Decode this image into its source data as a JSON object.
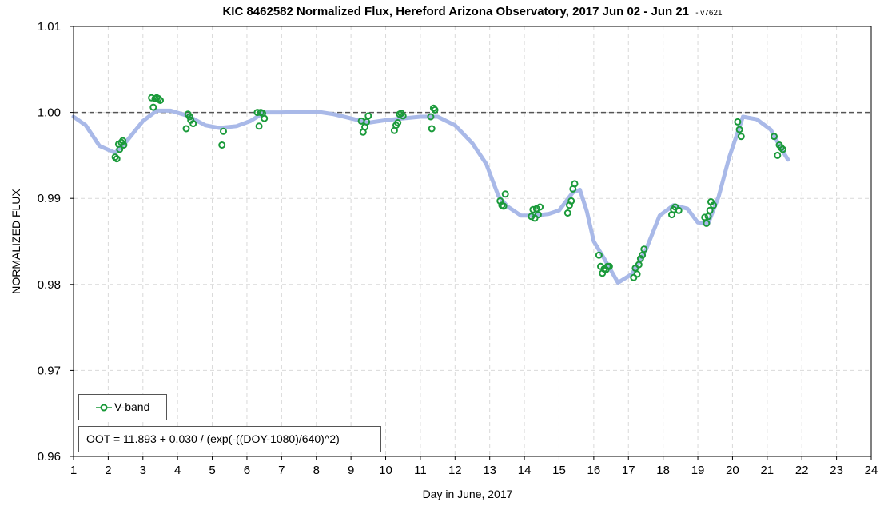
{
  "chart_data": {
    "type": "scatter",
    "title": "KIC 8462582 Normalized Flux, Hereford Arizona Observatory, 2017 Jun 02 - Jun 21",
    "title_tag": "- v7621",
    "xlabel": "Day in June, 2017",
    "ylabel": "NORMALIZED FLUX",
    "xlim": [
      1,
      24
    ],
    "ylim": [
      0.96,
      1.01
    ],
    "x_ticks": [
      "1",
      "2",
      "3",
      "4",
      "5",
      "6",
      "7",
      "8",
      "9",
      "10",
      "11",
      "12",
      "13",
      "14",
      "15",
      "16",
      "17",
      "18",
      "19",
      "20",
      "21",
      "22",
      "23",
      "24"
    ],
    "y_ticks": [
      "0.96",
      "0.97",
      "0.98",
      "0.99",
      "1.00",
      "1.01"
    ],
    "grid": true,
    "reference_line": 1.0,
    "legend_location": "lower-left",
    "colors": {
      "points": "#1a9a3a",
      "trend": "#a9b9e8",
      "reference": "#555555"
    },
    "series": [
      {
        "name": "V-band",
        "points": [
          [
            2.2,
            0.9948
          ],
          [
            2.25,
            0.9946
          ],
          [
            2.3,
            0.9963
          ],
          [
            2.33,
            0.9957
          ],
          [
            2.38,
            0.9965
          ],
          [
            2.42,
            0.9967
          ],
          [
            2.45,
            0.9962
          ],
          [
            3.25,
            1.0017
          ],
          [
            3.3,
            1.0006
          ],
          [
            3.35,
            1.0016
          ],
          [
            3.4,
            1.0017
          ],
          [
            3.45,
            1.0016
          ],
          [
            3.5,
            1.0014
          ],
          [
            4.25,
            0.9981
          ],
          [
            4.3,
            0.9998
          ],
          [
            4.35,
            0.9995
          ],
          [
            4.38,
            0.9991
          ],
          [
            4.45,
            0.9987
          ],
          [
            5.28,
            0.9962
          ],
          [
            5.32,
            0.9978
          ],
          [
            6.3,
            1.0
          ],
          [
            6.35,
            0.9984
          ],
          [
            6.4,
            1.0
          ],
          [
            6.45,
            0.9999
          ],
          [
            6.5,
            0.9993
          ],
          [
            9.3,
            0.999
          ],
          [
            9.35,
            0.9977
          ],
          [
            9.4,
            0.9983
          ],
          [
            9.45,
            0.9989
          ],
          [
            9.5,
            0.9996
          ],
          [
            10.25,
            0.9979
          ],
          [
            10.3,
            0.9985
          ],
          [
            10.35,
            0.9988
          ],
          [
            10.4,
            0.9998
          ],
          [
            10.45,
            0.9999
          ],
          [
            10.5,
            0.9996
          ],
          [
            11.3,
            0.9995
          ],
          [
            11.33,
            0.9981
          ],
          [
            11.38,
            1.0005
          ],
          [
            11.42,
            1.0003
          ],
          [
            13.3,
            0.9897
          ],
          [
            13.35,
            0.9892
          ],
          [
            13.4,
            0.9891
          ],
          [
            13.45,
            0.9905
          ],
          [
            14.2,
            0.9879
          ],
          [
            14.25,
            0.9887
          ],
          [
            14.3,
            0.9877
          ],
          [
            14.35,
            0.9888
          ],
          [
            14.4,
            0.9881
          ],
          [
            14.45,
            0.989
          ],
          [
            15.25,
            0.9883
          ],
          [
            15.3,
            0.9892
          ],
          [
            15.35,
            0.9897
          ],
          [
            15.4,
            0.9911
          ],
          [
            15.45,
            0.9917
          ],
          [
            16.15,
            0.9834
          ],
          [
            16.2,
            0.9821
          ],
          [
            16.25,
            0.9813
          ],
          [
            16.3,
            0.9818
          ],
          [
            16.35,
            0.9817
          ],
          [
            16.4,
            0.9821
          ],
          [
            16.45,
            0.9821
          ],
          [
            17.15,
            0.9808
          ],
          [
            17.2,
            0.9819
          ],
          [
            17.25,
            0.9812
          ],
          [
            17.3,
            0.9823
          ],
          [
            17.35,
            0.983
          ],
          [
            17.4,
            0.9834
          ],
          [
            17.45,
            0.9841
          ],
          [
            18.25,
            0.9881
          ],
          [
            18.3,
            0.9887
          ],
          [
            18.35,
            0.989
          ],
          [
            18.45,
            0.9886
          ],
          [
            19.2,
            0.9878
          ],
          [
            19.25,
            0.9871
          ],
          [
            19.3,
            0.9879
          ],
          [
            19.35,
            0.9886
          ],
          [
            19.38,
            0.9896
          ],
          [
            19.45,
            0.9892
          ],
          [
            20.15,
            0.9989
          ],
          [
            20.2,
            0.998
          ],
          [
            20.25,
            0.9972
          ],
          [
            21.2,
            0.9972
          ],
          [
            21.3,
            0.995
          ],
          [
            21.35,
            0.9962
          ],
          [
            21.4,
            0.9959
          ],
          [
            21.45,
            0.9957
          ]
        ]
      },
      {
        "name": "",
        "kind": "trend",
        "points": [
          [
            1,
            0.9995
          ],
          [
            1.35,
            0.9985
          ],
          [
            1.75,
            0.9961
          ],
          [
            2.2,
            0.9953
          ],
          [
            2.5,
            0.9965
          ],
          [
            3.0,
            0.999
          ],
          [
            3.4,
            1.0002
          ],
          [
            3.8,
            1.0002
          ],
          [
            4.3,
            0.9996
          ],
          [
            4.8,
            0.9985
          ],
          [
            5.2,
            0.9982
          ],
          [
            5.7,
            0.9984
          ],
          [
            6.1,
            0.999
          ],
          [
            6.5,
            1.0
          ],
          [
            7.0,
            1.0
          ],
          [
            8.0,
            1.0001
          ],
          [
            8.5,
            0.9998
          ],
          [
            9.0,
            0.9993
          ],
          [
            9.5,
            0.9988
          ],
          [
            10.0,
            0.9991
          ],
          [
            10.5,
            0.9993
          ],
          [
            11.0,
            0.9995
          ],
          [
            11.5,
            0.9995
          ],
          [
            12.0,
            0.9985
          ],
          [
            12.5,
            0.9964
          ],
          [
            12.9,
            0.994
          ],
          [
            13.25,
            0.9903
          ],
          [
            13.5,
            0.9891
          ],
          [
            13.9,
            0.988
          ],
          [
            14.3,
            0.988
          ],
          [
            14.7,
            0.9882
          ],
          [
            15.0,
            0.9886
          ],
          [
            15.4,
            0.9907
          ],
          [
            15.6,
            0.991
          ],
          [
            15.8,
            0.9885
          ],
          [
            16.0,
            0.985
          ],
          [
            16.3,
            0.983
          ],
          [
            16.7,
            0.9802
          ],
          [
            17.1,
            0.9812
          ],
          [
            17.5,
            0.984
          ],
          [
            17.9,
            0.988
          ],
          [
            18.3,
            0.9892
          ],
          [
            18.7,
            0.9888
          ],
          [
            19.0,
            0.9872
          ],
          [
            19.3,
            0.9871
          ],
          [
            19.6,
            0.9902
          ],
          [
            19.9,
            0.9947
          ],
          [
            20.3,
            0.9995
          ],
          [
            20.7,
            0.9992
          ],
          [
            21.1,
            0.998
          ],
          [
            21.4,
            0.9958
          ],
          [
            21.6,
            0.9945
          ]
        ]
      }
    ]
  },
  "legend": {
    "label": "V-band"
  },
  "formula": {
    "text": "OOT = 11.893 + 0.030 / (exp(-((DOY-1080)/640)^2)"
  }
}
